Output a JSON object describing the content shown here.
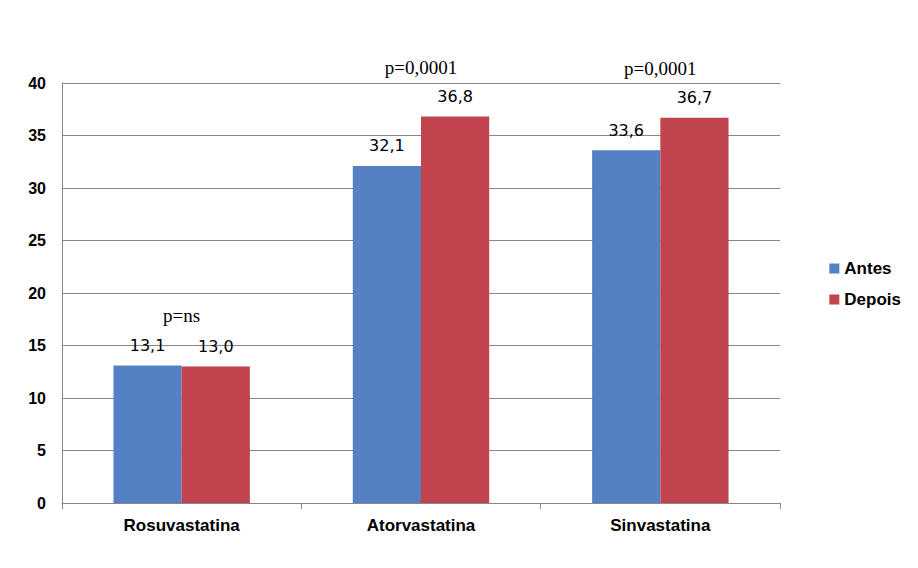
{
  "chart_data": {
    "type": "bar",
    "categories": [
      "Rosuvastatina",
      "Atorvastatina",
      "Sinvastatina"
    ],
    "series": [
      {
        "name": "Antes",
        "color": "#5580c4",
        "values": [
          13.1,
          32.1,
          33.6
        ],
        "value_labels": [
          "13,1",
          "32,1",
          "33,6"
        ]
      },
      {
        "name": "Depois",
        "color": "#c0434d",
        "values": [
          13.0,
          36.8,
          36.7
        ],
        "value_labels": [
          "13,0",
          "36,8",
          "36,7"
        ]
      }
    ],
    "ylim": [
      0,
      40
    ],
    "yticks": [
      0,
      5,
      10,
      15,
      20,
      25,
      30,
      35,
      40
    ],
    "grid": true,
    "legend": "right",
    "data_labels": true,
    "annotations": [
      {
        "category": "Rosuvastatina",
        "text": "p=ns"
      },
      {
        "category": "Atorvastatina",
        "text": "p=0,0001"
      },
      {
        "category": "Sinvastatina",
        "text": "p=0,0001"
      }
    ]
  }
}
